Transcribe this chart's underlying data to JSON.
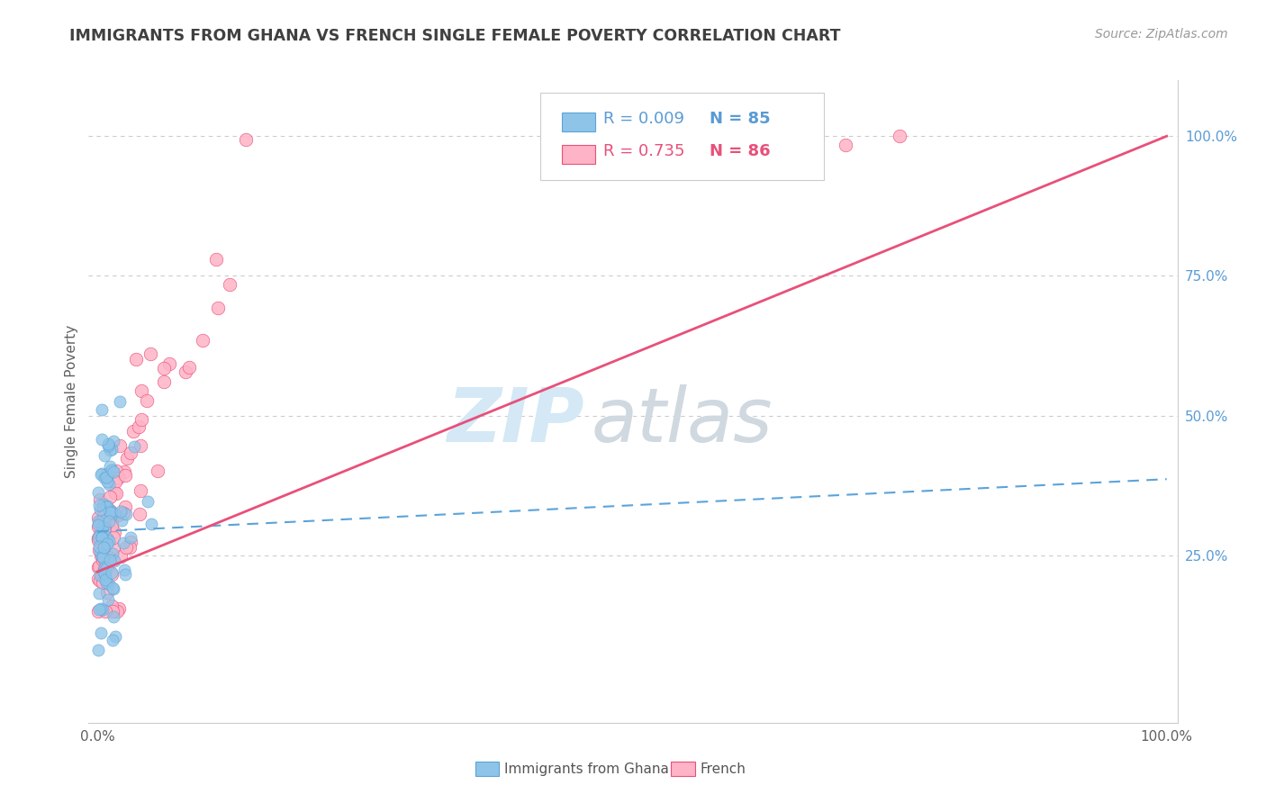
{
  "title": "IMMIGRANTS FROM GHANA VS FRENCH SINGLE FEMALE POVERTY CORRELATION CHART",
  "source": "Source: ZipAtlas.com",
  "ylabel": "Single Female Poverty",
  "legend_label1": "Immigrants from Ghana",
  "legend_label2": "French",
  "legend_r1": "R = 0.009",
  "legend_n1": "N = 85",
  "legend_r2": "R = 0.735",
  "legend_n2": "N = 86",
  "color_blue": "#8ec4e8",
  "color_pink": "#ffb3c6",
  "color_blue_line": "#5ba3d9",
  "color_pink_line": "#e8507a",
  "color_blue_text": "#5b9bd5",
  "color_pink_text": "#e8507a",
  "ytick_color": "#5b9bd5",
  "grid_color": "#cccccc",
  "title_color": "#404040",
  "source_color": "#999999",
  "ylabel_color": "#606060",
  "xtick_color": "#606060",
  "bg_color": "#ffffff",
  "watermark_zip_color": "#d4e8f5",
  "watermark_atlas_color": "#d0d8e0"
}
